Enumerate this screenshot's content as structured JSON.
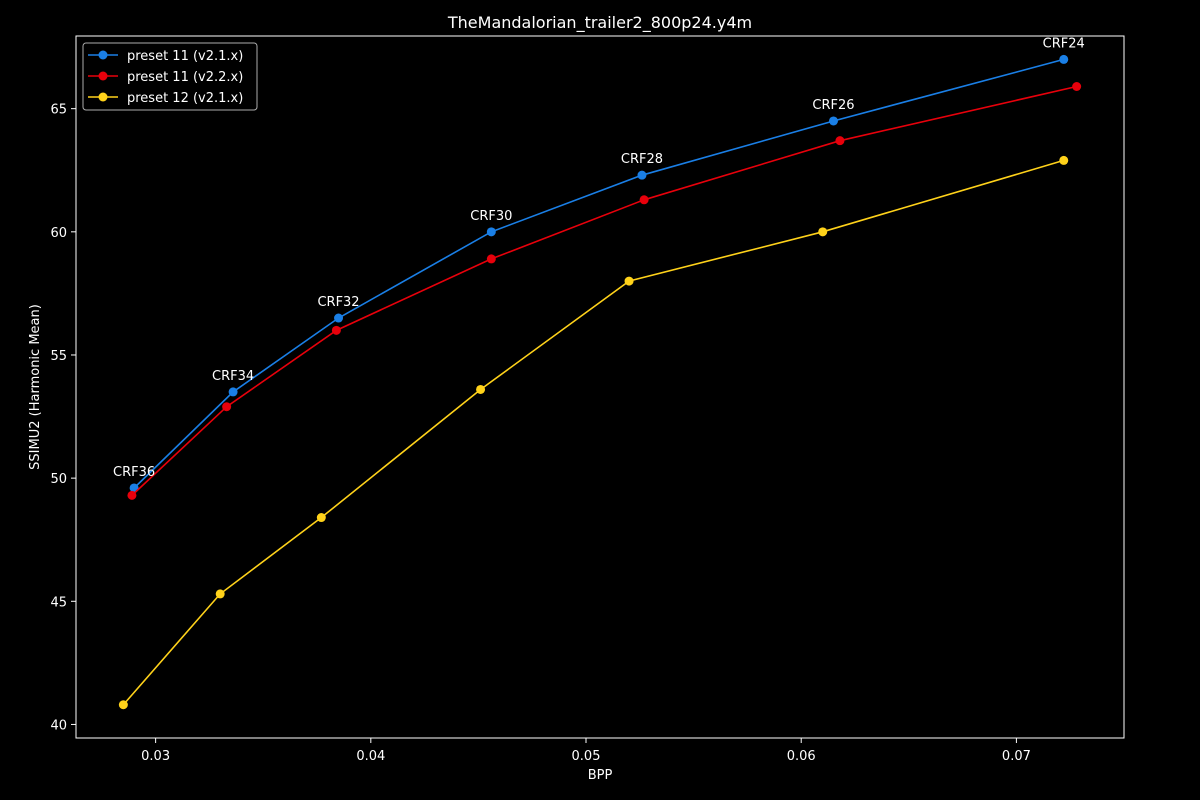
{
  "chart_data": {
    "type": "line",
    "title": "TheMandalorian_trailer2_800p24.y4m",
    "xlabel": "BPP",
    "ylabel": "SSIMU2 (Harmonic Mean)",
    "xlim": [
      0.0263,
      0.075
    ],
    "ylim": [
      39.45,
      67.95
    ],
    "xticks": [
      0.03,
      0.04,
      0.05,
      0.06,
      0.07
    ],
    "xtick_labels": [
      "0.03",
      "0.04",
      "0.05",
      "0.06",
      "0.07"
    ],
    "yticks": [
      40,
      45,
      50,
      55,
      60,
      65
    ],
    "ytick_labels": [
      "40",
      "45",
      "50",
      "55",
      "60",
      "65"
    ],
    "grid": false,
    "legend_position": "top-left",
    "series": [
      {
        "name": "preset 11 (v2.1.x)",
        "color": "#1a7fe6",
        "x": [
          0.029,
          0.0336,
          0.0385,
          0.0456,
          0.0526,
          0.0615,
          0.0722
        ],
        "y": [
          49.6,
          53.5,
          56.5,
          60.0,
          62.3,
          64.5,
          67.0
        ]
      },
      {
        "name": "preset 11 (v2.2.x)",
        "color": "#e8000b",
        "x": [
          0.0289,
          0.0333,
          0.0384,
          0.0456,
          0.0527,
          0.0618,
          0.0728
        ],
        "y": [
          49.3,
          52.9,
          56.0,
          58.9,
          61.3,
          63.7,
          65.9
        ]
      },
      {
        "name": "preset 12 (v2.1.x)",
        "color": "#ffd21a",
        "x": [
          0.0285,
          0.033,
          0.0377,
          0.0451,
          0.052,
          0.061,
          0.0722
        ],
        "y": [
          40.8,
          45.3,
          48.4,
          53.6,
          58.0,
          60.0,
          62.9
        ]
      }
    ],
    "annotations": [
      {
        "text": "CRF36",
        "x": 0.029,
        "y": 49.6
      },
      {
        "text": "CRF34",
        "x": 0.0336,
        "y": 53.5
      },
      {
        "text": "CRF32",
        "x": 0.0385,
        "y": 56.5
      },
      {
        "text": "CRF30",
        "x": 0.0456,
        "y": 60.0
      },
      {
        "text": "CRF28",
        "x": 0.0526,
        "y": 62.3
      },
      {
        "text": "CRF26",
        "x": 0.0615,
        "y": 64.5
      },
      {
        "text": "CRF24",
        "x": 0.0722,
        "y": 67.0
      }
    ]
  }
}
